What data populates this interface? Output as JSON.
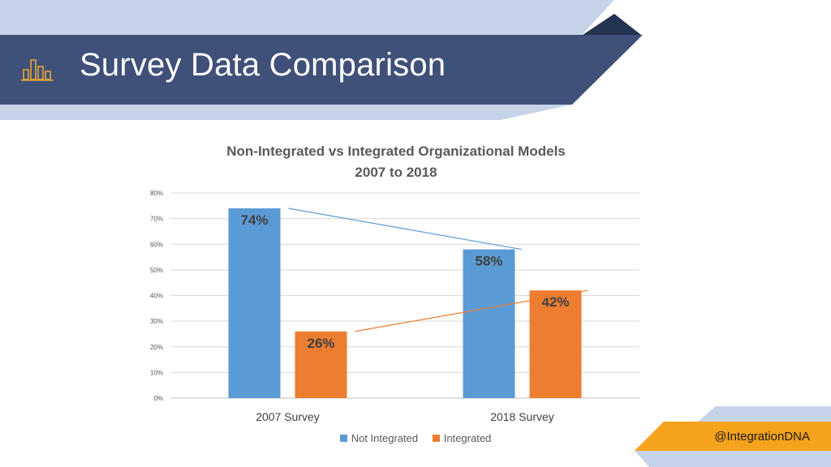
{
  "header": {
    "title": "Survey Data Comparison",
    "icon": "bar-chart-icon"
  },
  "colors": {
    "header_bg": "#3f5079",
    "header_light": "#c6d4e9",
    "header_dark": "#233352",
    "accent_orange": "#f5a21c",
    "series_not_integrated": "#5b9bd5",
    "series_integrated": "#ed7d31"
  },
  "chart_data": {
    "type": "bar",
    "title": "Non-Integrated vs Integrated Organizational Models",
    "subtitle": "2007 to 2018",
    "categories": [
      "2007 Survey",
      "2018 Survey"
    ],
    "series": [
      {
        "name": "Not Integrated",
        "values": [
          74,
          58
        ],
        "labels": [
          "74%",
          "58%"
        ]
      },
      {
        "name": "Integrated",
        "values": [
          26,
          42
        ],
        "labels": [
          "26%",
          "42%"
        ]
      }
    ],
    "ylim": [
      0,
      80
    ],
    "yticks": [
      "0%",
      "10%",
      "20%",
      "30%",
      "40%",
      "50%",
      "60%",
      "70%",
      "80%"
    ],
    "grid": true,
    "trendlines": true,
    "legend_position": "bottom"
  },
  "footer": {
    "handle": "@IntegrationDNA"
  }
}
